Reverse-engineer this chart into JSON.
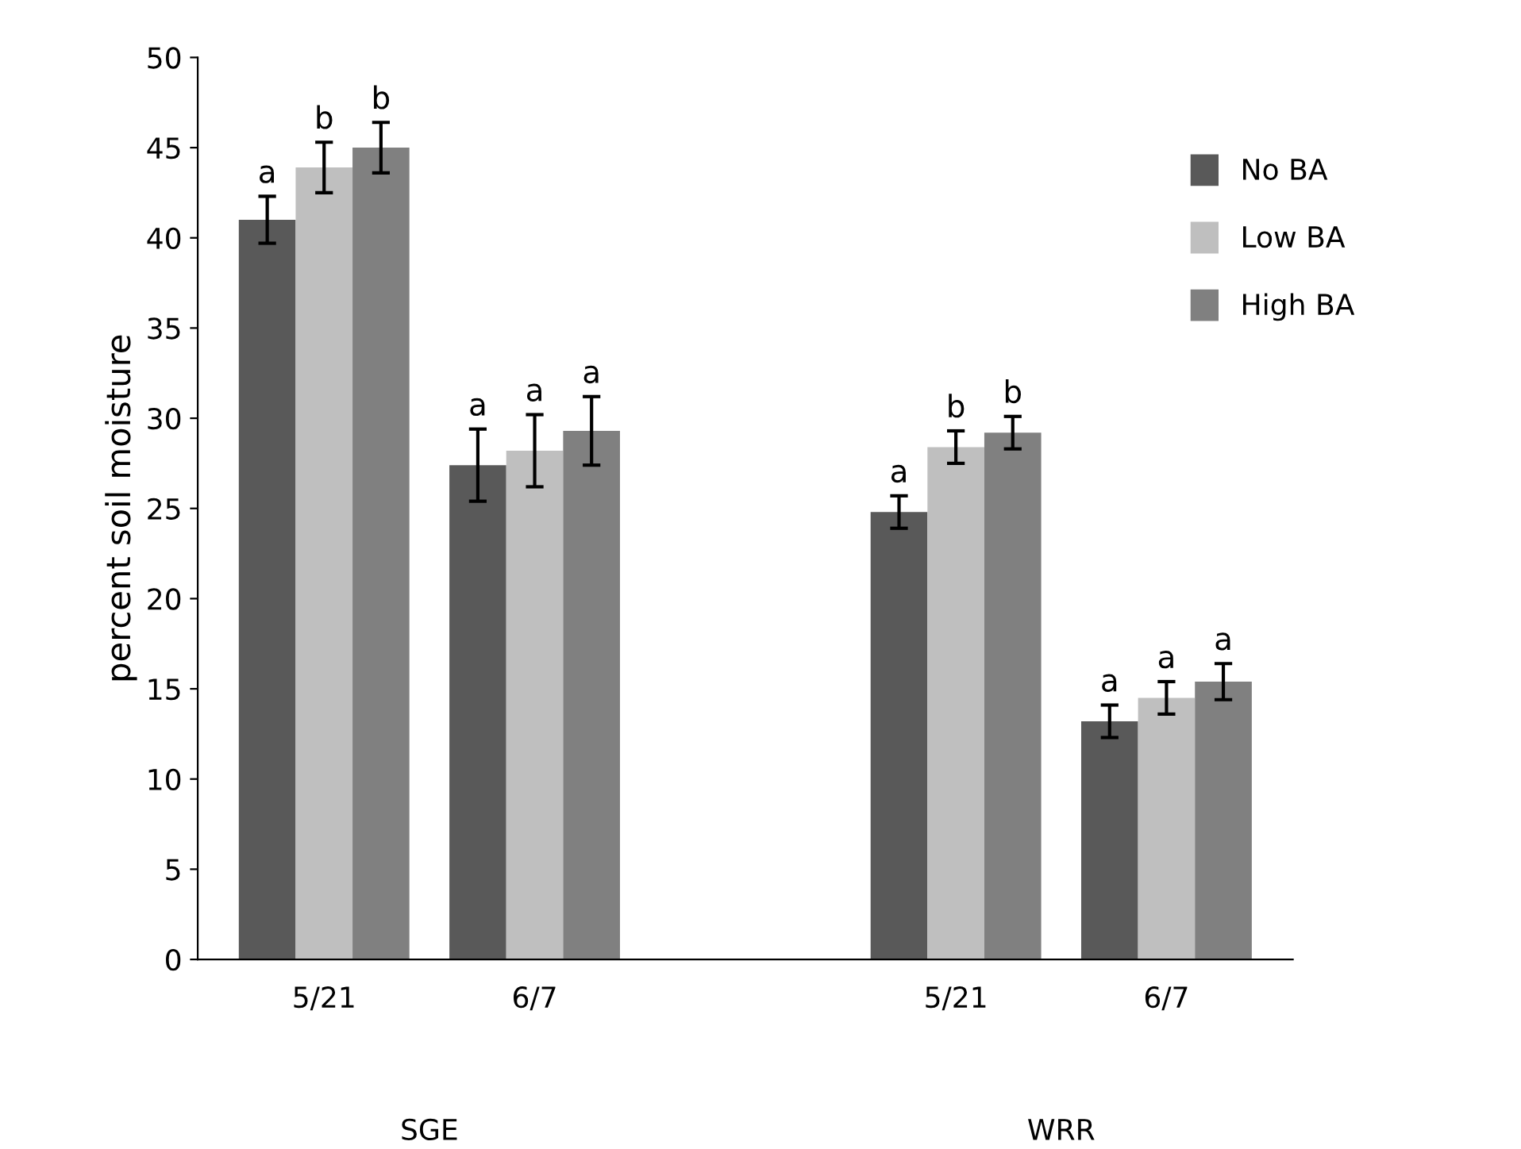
{
  "chart_data": {
    "type": "bar",
    "ylabel": "percent soil moisture",
    "categories": [
      "5/21",
      "6/7",
      null,
      "5/21",
      "6/7"
    ],
    "series": [
      {
        "name": "No BA",
        "color": "#595959",
        "values": [
          41,
          27.4,
          null,
          24.8,
          13.2
        ],
        "errors": [
          1.3,
          2,
          null,
          0.9,
          0.9
        ],
        "value_labels": [
          "a",
          "a",
          null,
          "a",
          "a"
        ]
      },
      {
        "name": "Low BA",
        "color": "#bfbfbf",
        "values": [
          43.9,
          28.2,
          null,
          28.4,
          14.5
        ],
        "errors": [
          1.4,
          2,
          null,
          0.9,
          0.9
        ],
        "value_labels": [
          "b",
          "a",
          null,
          "b",
          "a"
        ]
      },
      {
        "name": "High BA",
        "color": "#808080",
        "values": [
          45,
          29.3,
          null,
          29.2,
          15.4
        ],
        "errors": [
          1.4,
          1.9,
          null,
          0.9,
          1
        ],
        "value_labels": [
          "b",
          "a",
          null,
          "b",
          "a"
        ]
      }
    ],
    "annotations": [
      "SGE",
      "WRR"
    ],
    "ylim": [
      0,
      50
    ],
    "yticks": [
      0,
      5,
      10,
      15,
      20,
      25,
      30,
      35,
      40,
      45,
      50
    ],
    "grid": false,
    "legend": "top right"
  }
}
